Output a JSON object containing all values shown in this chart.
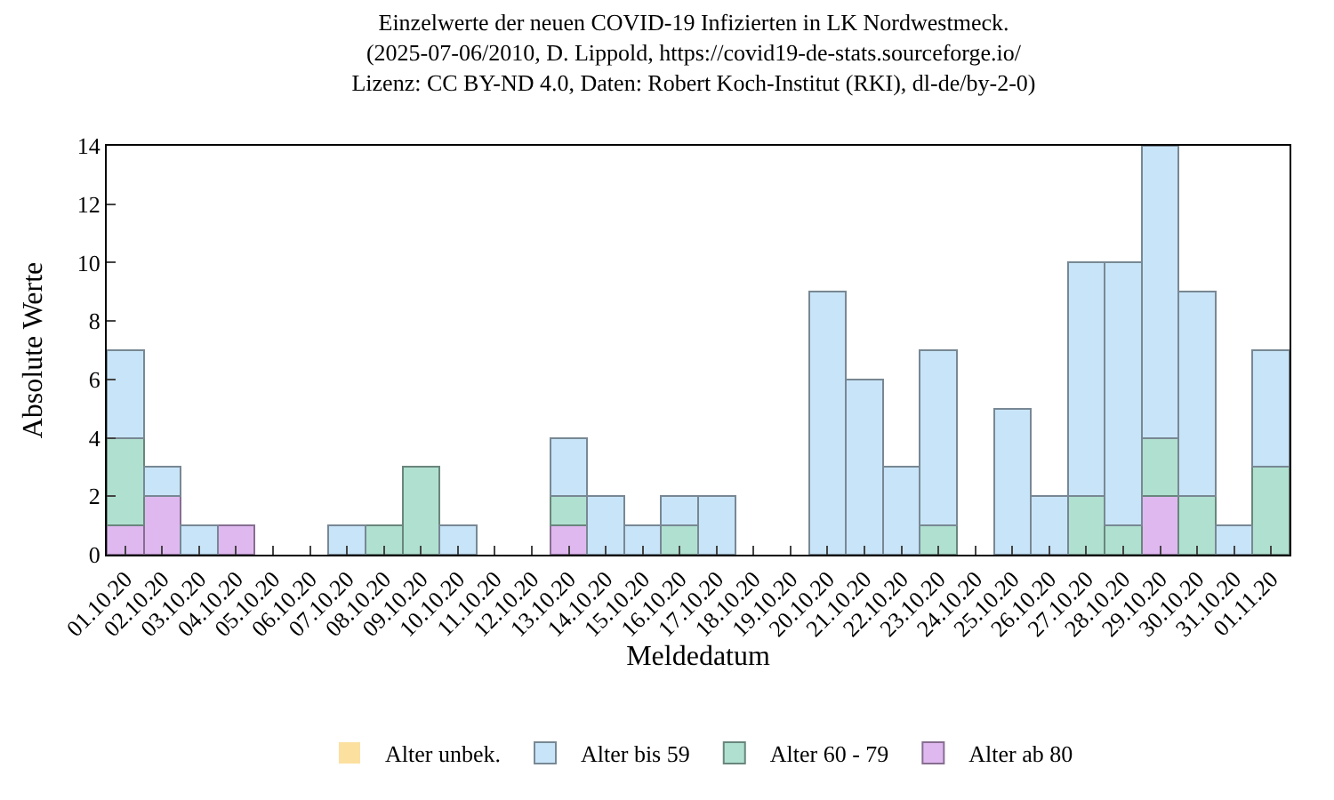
{
  "chart_data": {
    "type": "bar",
    "stacked": true,
    "title": "Einzelwerte der neuen COVID-19 Infizierten in LK Nordwestmeck.\n(2025-07-06/2010, D. Lippold, https://covid19-de-stats.sourceforge.io/\nLizenz: CC BY-ND 4.0, Daten: Robert Koch-Institut (RKI), dl-de/by-2-0)",
    "xlabel": "Meldedatum",
    "ylabel": "Absolute Werte",
    "categories": [
      "01.10.20",
      "02.10.20",
      "03.10.20",
      "04.10.20",
      "05.10.20",
      "06.10.20",
      "07.10.20",
      "08.10.20",
      "09.10.20",
      "10.10.20",
      "11.10.20",
      "12.10.20",
      "13.10.20",
      "14.10.20",
      "15.10.20",
      "16.10.20",
      "17.10.20",
      "18.10.20",
      "19.10.20",
      "20.10.20",
      "21.10.20",
      "22.10.20",
      "23.10.20",
      "24.10.20",
      "25.10.20",
      "26.10.20",
      "27.10.20",
      "28.10.20",
      "29.10.20",
      "30.10.20",
      "31.10.20",
      "01.11.20"
    ],
    "series": [
      {
        "name": "Alter ab 80",
        "color": "#e0b8f0",
        "values": [
          1,
          2,
          0,
          1,
          0,
          0,
          0,
          0,
          0,
          0,
          0,
          0,
          1,
          0,
          0,
          0,
          0,
          0,
          0,
          0,
          0,
          0,
          0,
          0,
          0,
          0,
          0,
          0,
          2,
          0,
          0,
          0
        ]
      },
      {
        "name": "Alter 60 - 79",
        "color": "#b0e0d0",
        "values": [
          3,
          0,
          0,
          0,
          0,
          0,
          0,
          1,
          3,
          0,
          0,
          0,
          1,
          0,
          0,
          1,
          0,
          0,
          0,
          0,
          0,
          0,
          1,
          0,
          0,
          0,
          2,
          1,
          2,
          2,
          0,
          3
        ]
      },
      {
        "name": "Alter bis 59",
        "color": "#c8e4f8",
        "values": [
          3,
          1,
          1,
          0,
          0,
          0,
          1,
          0,
          0,
          1,
          0,
          0,
          2,
          2,
          1,
          1,
          2,
          0,
          0,
          9,
          6,
          3,
          6,
          0,
          5,
          2,
          8,
          9,
          10,
          7,
          1,
          4
        ]
      },
      {
        "name": "Alter unbek.",
        "color": "#fce0a0",
        "values": [
          0,
          0,
          0,
          0,
          0,
          0,
          0,
          0,
          0,
          0,
          0,
          0,
          0,
          0,
          0,
          0,
          0,
          0,
          0,
          0,
          0,
          0,
          0,
          0,
          0,
          0,
          0,
          0,
          0,
          0,
          0,
          0
        ]
      }
    ],
    "ylim": [
      0,
      14
    ],
    "yticks": [
      0,
      2,
      4,
      6,
      8,
      10,
      12,
      14
    ],
    "legend": "bottom"
  }
}
